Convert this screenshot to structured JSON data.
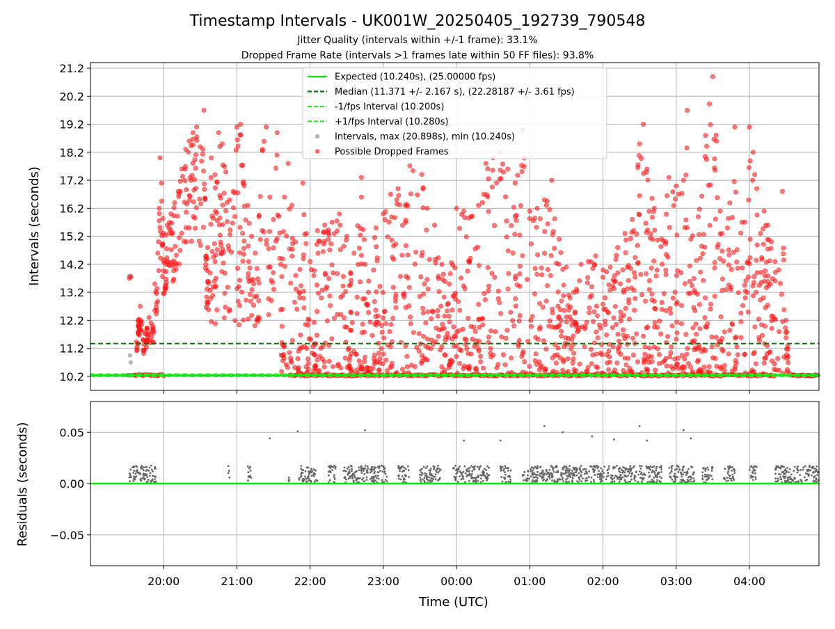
{
  "chart_data": {
    "type": "scatter",
    "title": "Timestamp Intervals - UK001W_20250405_192739_790548",
    "subtitles": [
      "Jitter Quality (intervals within +/-1 frame): 33.1%",
      "Dropped Frame Rate (intervals >1 frames late within 50 FF files): 93.8%"
    ],
    "xlabel": "Time (UTC)",
    "x_ticks": [
      "20:00",
      "21:00",
      "22:00",
      "23:00",
      "00:00",
      "01:00",
      "02:00",
      "03:00",
      "04:00"
    ],
    "x_range_hours": [
      19.0,
      4.95
    ],
    "top_panel": {
      "ylabel": "Intervals (seconds)",
      "y_ticks": [
        "10.2",
        "11.2",
        "12.2",
        "13.2",
        "14.2",
        "15.2",
        "16.2",
        "17.2",
        "18.2",
        "19.2",
        "20.2",
        "21.2"
      ],
      "ylim": [
        9.7,
        21.4
      ],
      "grid": true,
      "legend_position": "top-center",
      "legend": [
        {
          "label": "Expected (10.240s), (25.00000 fps)",
          "style": "solid-line",
          "color": "#00ee00"
        },
        {
          "label": "Median (11.371 +/- 2.167 s), (22.28187 +/- 3.61 fps)",
          "style": "dashed-line",
          "color": "#007700"
        },
        {
          "label": "-1/fps Interval (10.200s)",
          "style": "dashed-line",
          "color": "#22ee22"
        },
        {
          "label": "+1/fps Interval (10.280s)",
          "style": "dashed-line",
          "color": "#22ee22"
        },
        {
          "label": "Intervals, max (20.898s), min (10.240s)",
          "style": "marker",
          "color": "#999999"
        },
        {
          "label": "Possible Dropped Frames",
          "style": "marker",
          "color": "#ff2222"
        }
      ],
      "reference_lines": {
        "expected": 10.24,
        "median": 11.371,
        "minus_one_fps": 10.2,
        "plus_one_fps": 10.28
      },
      "envelope_points": [
        [
          19.53,
          13.7
        ],
        [
          19.55,
          13.75
        ],
        [
          19.53,
          10.9
        ],
        [
          19.55,
          10.7
        ],
        [
          19.6,
          10.6
        ],
        [
          19.65,
          12.2
        ],
        [
          19.68,
          12.7
        ],
        [
          19.72,
          11.5
        ],
        [
          19.75,
          11.8
        ],
        [
          19.8,
          12.3
        ],
        [
          19.85,
          12.0
        ],
        [
          19.88,
          13.5
        ],
        [
          19.92,
          14.6
        ],
        [
          19.94,
          16.2
        ],
        [
          19.95,
          18.0
        ],
        [
          19.97,
          17.1
        ],
        [
          20.0,
          15.3
        ],
        [
          20.05,
          15.6
        ],
        [
          20.1,
          16.0
        ],
        [
          20.15,
          16.4
        ],
        [
          20.2,
          16.8
        ],
        [
          20.25,
          17.6
        ],
        [
          20.3,
          18.3
        ],
        [
          20.35,
          18.6
        ],
        [
          20.4,
          18.9
        ],
        [
          20.45,
          19.1
        ],
        [
          20.5,
          18.4
        ],
        [
          20.55,
          19.7
        ],
        [
          20.58,
          14.5
        ],
        [
          20.6,
          14.8
        ],
        [
          20.65,
          18.0
        ],
        [
          20.7,
          17.4
        ],
        [
          20.75,
          18.9
        ],
        [
          20.8,
          18.5
        ],
        [
          20.85,
          17.5
        ],
        [
          20.9,
          16.5
        ],
        [
          20.95,
          16.8
        ],
        [
          21.0,
          19.1
        ],
        [
          21.05,
          19.2
        ],
        [
          21.1,
          17.0
        ],
        [
          21.15,
          16.3
        ],
        [
          21.2,
          15.2
        ],
        [
          21.25,
          14.6
        ],
        [
          21.3,
          15.9
        ],
        [
          21.35,
          18.3
        ],
        [
          21.4,
          19.1
        ],
        [
          21.45,
          16.6
        ],
        [
          21.5,
          15.8
        ],
        [
          21.55,
          18.9
        ],
        [
          21.6,
          14.2
        ],
        [
          21.65,
          16.6
        ],
        [
          21.7,
          17.8
        ],
        [
          21.75,
          16.3
        ],
        [
          21.8,
          15.0
        ],
        [
          21.85,
          13.2
        ],
        [
          21.9,
          17.1
        ],
        [
          21.95,
          15.3
        ],
        [
          22.0,
          14.3
        ],
        [
          22.05,
          13.8
        ],
        [
          22.1,
          15.4
        ],
        [
          22.2,
          15.6
        ],
        [
          22.3,
          15.7
        ],
        [
          22.4,
          16.0
        ],
        [
          22.5,
          15.2
        ],
        [
          22.6,
          14.6
        ],
        [
          22.7,
          17.3
        ],
        [
          22.8,
          13.6
        ],
        [
          22.9,
          15.5
        ],
        [
          23.0,
          16.0
        ],
        [
          23.1,
          16.7
        ],
        [
          23.2,
          16.9
        ],
        [
          23.3,
          16.3
        ],
        [
          23.4,
          19.6
        ],
        [
          23.5,
          18.2
        ],
        [
          23.6,
          16.2
        ],
        [
          23.7,
          15.6
        ],
        [
          23.8,
          14.2
        ],
        [
          23.9,
          13.5
        ],
        [
          24.0,
          16.2
        ],
        [
          24.1,
          16.1
        ],
        [
          24.2,
          15.9
        ],
        [
          24.3,
          16.3
        ],
        [
          24.4,
          17.8
        ],
        [
          24.5,
          18.0
        ],
        [
          24.6,
          18.2
        ],
        [
          24.7,
          17.6
        ],
        [
          24.8,
          17.1
        ],
        [
          24.9,
          19.0
        ],
        [
          25.0,
          16.1
        ],
        [
          25.1,
          16.2
        ],
        [
          25.2,
          16.5
        ],
        [
          25.3,
          17.2
        ],
        [
          25.4,
          15.1
        ],
        [
          25.5,
          14.1
        ],
        [
          25.6,
          13.2
        ],
        [
          25.7,
          14.2
        ],
        [
          25.8,
          14.3
        ],
        [
          25.9,
          14.5
        ],
        [
          26.0,
          14.0
        ],
        [
          26.1,
          14.1
        ],
        [
          26.2,
          14.8
        ],
        [
          26.3,
          15.3
        ],
        [
          26.4,
          15.8
        ],
        [
          26.5,
          18.5
        ],
        [
          26.55,
          19.2
        ],
        [
          26.6,
          17.6
        ],
        [
          26.7,
          16.2
        ],
        [
          26.8,
          15.1
        ],
        [
          26.9,
          17.3
        ],
        [
          27.0,
          17.0
        ],
        [
          27.1,
          17.2
        ],
        [
          27.15,
          19.7
        ],
        [
          27.2,
          15.1
        ],
        [
          27.3,
          15.9
        ],
        [
          27.4,
          18.8
        ],
        [
          27.5,
          20.9
        ],
        [
          27.55,
          18.6
        ],
        [
          27.6,
          16.1
        ],
        [
          27.7,
          15.5
        ],
        [
          27.8,
          19.1
        ],
        [
          27.9,
          15.7
        ],
        [
          28.0,
          19.1
        ],
        [
          28.05,
          18.2
        ],
        [
          28.1,
          16.9
        ],
        [
          28.15,
          15.3
        ],
        [
          28.2,
          16.1
        ],
        [
          28.25,
          15.6
        ],
        [
          28.3,
          15.0
        ],
        [
          28.35,
          14.3
        ],
        [
          28.4,
          14.0
        ],
        [
          28.45,
          16.8
        ],
        [
          28.5,
          12.2
        ],
        [
          28.55,
          10.6
        ],
        [
          28.6,
          10.3
        ],
        [
          28.9,
          10.3
        ]
      ]
    },
    "bottom_panel": {
      "ylabel": "Residuals (seconds)",
      "y_ticks": [
        "0.05",
        "0.00",
        "−0.05"
      ],
      "ylim": [
        -0.08,
        0.08
      ],
      "grid": true,
      "reference_line": 0.0,
      "outliers": [
        [
          21.45,
          0.044
        ],
        [
          21.83,
          0.051
        ],
        [
          22.75,
          0.052
        ],
        [
          24.1,
          0.042
        ],
        [
          24.6,
          0.042
        ],
        [
          25.2,
          0.056
        ],
        [
          25.45,
          0.05
        ],
        [
          25.85,
          0.046
        ],
        [
          26.15,
          0.043
        ],
        [
          26.5,
          0.056
        ],
        [
          26.6,
          0.042
        ],
        [
          27.1,
          0.052
        ],
        [
          27.2,
          0.044
        ]
      ],
      "band_segments": [
        [
          19.52,
          19.9
        ],
        [
          20.88,
          20.9
        ],
        [
          21.15,
          21.2
        ],
        [
          21.7,
          21.72
        ],
        [
          21.85,
          22.1
        ],
        [
          22.25,
          22.35
        ],
        [
          22.45,
          23.05
        ],
        [
          23.2,
          23.35
        ],
        [
          23.5,
          23.8
        ],
        [
          23.95,
          24.45
        ],
        [
          24.6,
          24.75
        ],
        [
          24.9,
          25.1
        ],
        [
          25.1,
          26.8
        ],
        [
          26.9,
          27.25
        ],
        [
          27.35,
          27.5
        ],
        [
          27.65,
          27.8
        ],
        [
          28.0,
          28.1
        ],
        [
          28.35,
          28.95
        ]
      ]
    }
  }
}
